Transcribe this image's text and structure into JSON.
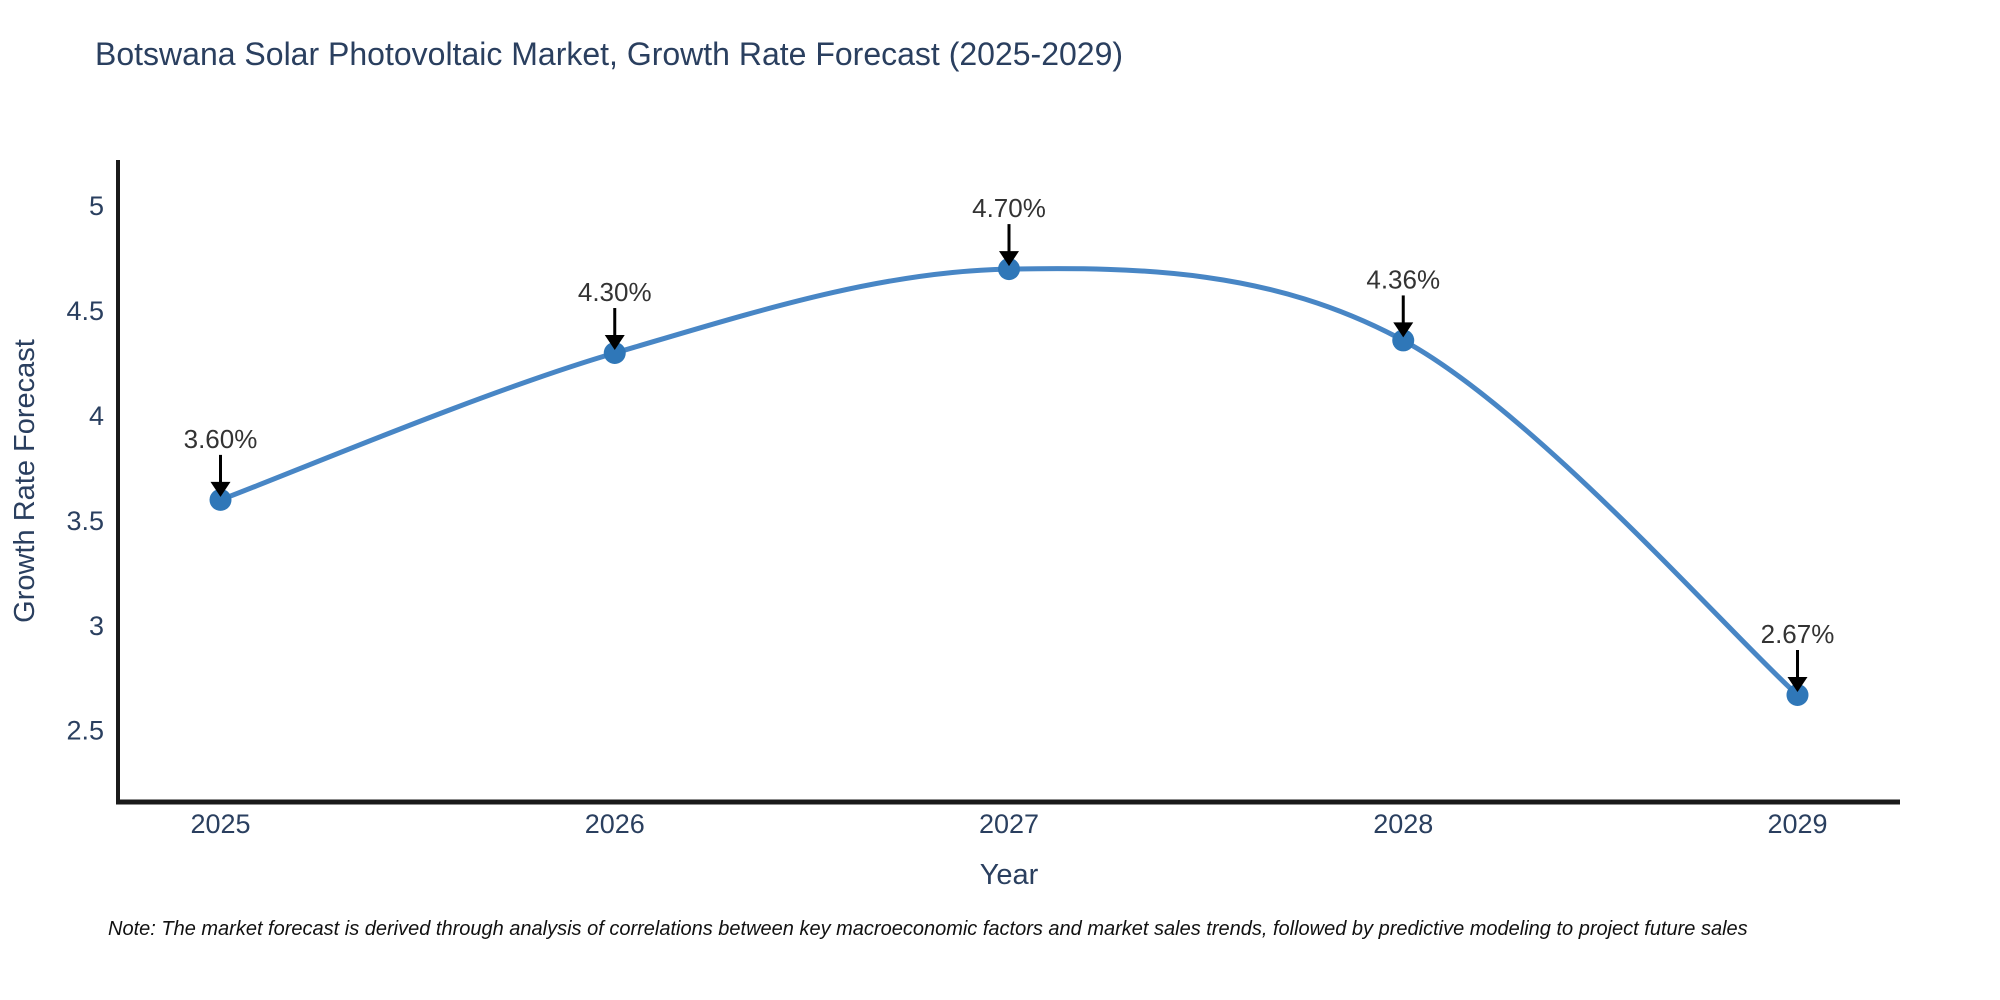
{
  "note": "Note: The market forecast is derived through analysis of correlations between key macroeconomic factors and market sales trends, followed by predictive modeling to project future sales",
  "colors": {
    "title_text": "#2a3f5f",
    "tick_text": "#2a3f5f",
    "annotation_text": "#333333",
    "axis_line": "#1a1a1a",
    "line": "#4886c5",
    "marker": "#2f77b8",
    "arrow": "#000000",
    "background": "#ffffff"
  },
  "chart_data": {
    "type": "line",
    "title": "Botswana Solar Photovoltaic Market, Growth Rate Forecast (2025-2029)",
    "xlabel": "Year",
    "ylabel": "Growth Rate Forecast",
    "x": [
      2025,
      2026,
      2027,
      2028,
      2029
    ],
    "y": [
      3.6,
      4.3,
      4.7,
      4.36,
      2.67
    ],
    "labels": [
      "3.60%",
      "4.30%",
      "4.70%",
      "4.36%",
      "2.67%"
    ],
    "x_tick_labels": [
      "2025",
      "2026",
      "2027",
      "2028",
      "2029"
    ],
    "y_ticks": [
      2.5,
      3,
      3.5,
      4,
      4.5,
      5
    ],
    "xlim": [
      2024.74,
      2029.26
    ],
    "ylim": [
      2.16,
      5.22
    ],
    "line_shape": "spline",
    "grid": false,
    "legend": "none",
    "marker_style": "circle",
    "annotation_arrows": "down"
  }
}
